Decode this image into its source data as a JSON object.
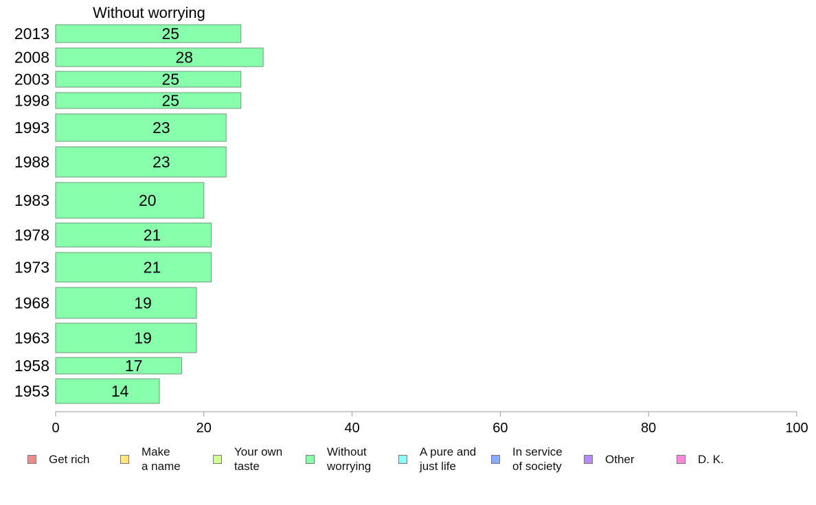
{
  "chart_data": {
    "type": "bar",
    "orientation": "horizontal",
    "title": "Without worrying",
    "categories": [
      "2013",
      "2008",
      "2003",
      "1998",
      "1993",
      "1988",
      "1983",
      "1978",
      "1973",
      "1968",
      "1963",
      "1958",
      "1953"
    ],
    "values": [
      25,
      28,
      25,
      25,
      23,
      23,
      20,
      21,
      21,
      19,
      19,
      17,
      14
    ],
    "bar_color": "#88ffaa",
    "bar_border": "#6a9a7a",
    "xlim": [
      0,
      100
    ],
    "xticks": [
      0,
      20,
      40,
      60,
      80,
      100
    ],
    "legend": {
      "placement": "bottom",
      "items": [
        {
          "label": "Get rich",
          "color": "#f28c8c"
        },
        {
          "label": "Make\na name",
          "color": "#ffe680"
        },
        {
          "label": "Your own\ntaste",
          "color": "#d4ff8c"
        },
        {
          "label": "Without\nworrying",
          "color": "#88ffaa"
        },
        {
          "label": "A pure and\njust life",
          "color": "#88ffff"
        },
        {
          "label": "In service\nof society",
          "color": "#88aaff"
        },
        {
          "label": "Other",
          "color": "#bb88ff"
        },
        {
          "label": "D. K.",
          "color": "#ff88dd"
        }
      ]
    }
  }
}
